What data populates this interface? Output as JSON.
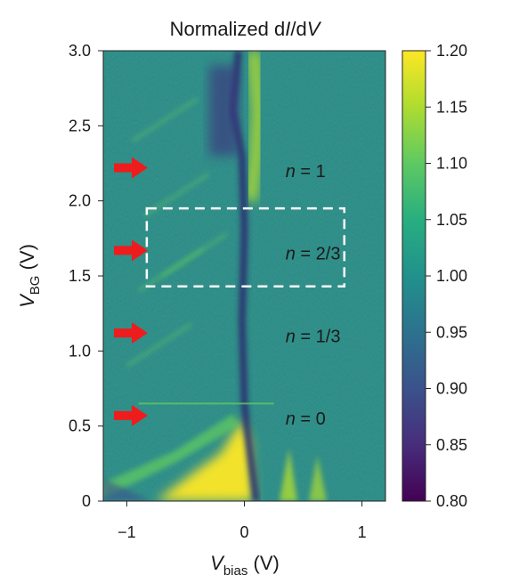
{
  "chart_data": {
    "type": "heatmap",
    "title": "Normalized dI/dV",
    "title_parts": {
      "prefix": "Normalized d",
      "italic1": "I",
      "slash": "/d",
      "italic2": "V"
    },
    "xlabel": {
      "symbol": "V",
      "subscript": "bias",
      "unit": " (V)"
    },
    "ylabel": {
      "symbol": "V",
      "subscript": "BG",
      "unit": " (V)"
    },
    "xlim": [
      -1.2,
      1.2
    ],
    "ylim": [
      0,
      3.0
    ],
    "x_ticks": [
      {
        "value": -1,
        "label": "−1"
      },
      {
        "value": 0,
        "label": "0"
      },
      {
        "value": 1,
        "label": "1"
      }
    ],
    "y_ticks": [
      {
        "value": 0,
        "label": "0"
      },
      {
        "value": 0.5,
        "label": "0.5"
      },
      {
        "value": 1.0,
        "label": "1.0"
      },
      {
        "value": 1.5,
        "label": "1.5"
      },
      {
        "value": 2.0,
        "label": "2.0"
      },
      {
        "value": 2.5,
        "label": "2.5"
      },
      {
        "value": 3.0,
        "label": "3.0"
      }
    ],
    "colorbar": {
      "range": [
        0.8,
        1.2
      ],
      "ticks": [
        "0.80",
        "0.85",
        "0.90",
        "0.95",
        "1.00",
        "1.05",
        "1.10",
        "1.15",
        "1.20"
      ],
      "colormap": "viridis"
    },
    "annotations": [
      {
        "text": "n = 0",
        "vbg": 0.55,
        "vbias": 0.35,
        "color": "#e0302a"
      },
      {
        "text": "n = 1/3",
        "vbg": 1.1,
        "vbias": 0.35,
        "color": "#e0302a"
      },
      {
        "text": "n = 2/3",
        "vbg": 1.65,
        "vbias": 0.35,
        "color": "#e0302a"
      },
      {
        "text": "n = 1",
        "vbg": 2.2,
        "vbias": 0.35,
        "color": "#e0302a"
      }
    ],
    "arrows_vbg": [
      0.57,
      1.12,
      1.67,
      2.22
    ],
    "highlight_box": {
      "vbias": [
        -0.83,
        0.85
      ],
      "vbg": [
        1.43,
        1.95
      ],
      "style": "dashed",
      "color": "#ffffff"
    },
    "grid": false,
    "legend": "none"
  }
}
